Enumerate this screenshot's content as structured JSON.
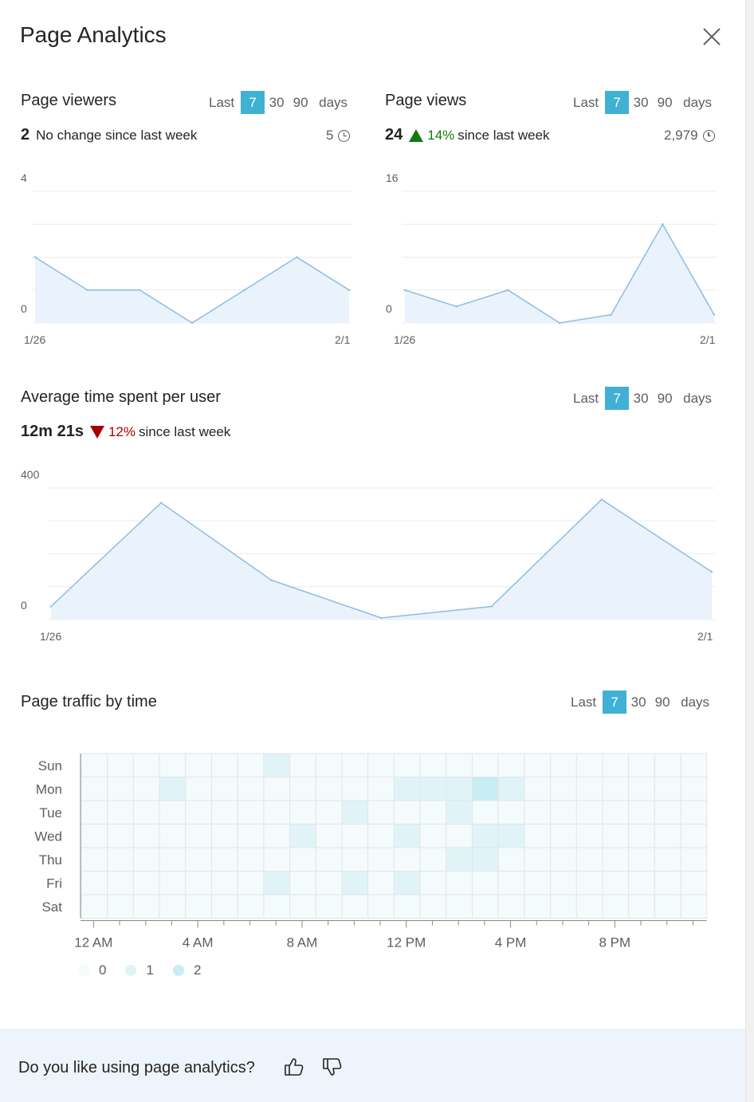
{
  "panel": {
    "title": "Page Analytics",
    "close_icon": "close-icon"
  },
  "range_options": {
    "prefix": "Last",
    "options": [
      "7",
      "30",
      "90"
    ],
    "suffix": "days",
    "selected": "7"
  },
  "page_viewers": {
    "title": "Page viewers",
    "count": "2",
    "change_text": "No change since last week",
    "total": "5",
    "total_icon": "clock-icon"
  },
  "page_views": {
    "title": "Page views",
    "count": "24",
    "change_pct": "14%",
    "change_text": "since last week",
    "trend": "up",
    "total": "2,979",
    "total_icon": "clock-icon"
  },
  "avg_time": {
    "title": "Average time spent per user",
    "value": "12m 21s",
    "change_pct": "12%",
    "change_text": "since last week",
    "trend": "down"
  },
  "traffic": {
    "title": "Page traffic by time"
  },
  "feedback": {
    "question": "Do you like using page analytics?",
    "like_icon": "thumbs-up-icon",
    "dislike_icon": "thumbs-down-icon"
  },
  "colors": {
    "accent": "#40b0d4",
    "line": "#8cbce8",
    "area": "#eaf2fb",
    "up": "#107c10",
    "down": "#a80000",
    "heat0": "#f3fbfd",
    "heat1": "#e0f4f8",
    "heat2": "#c8edf4"
  },
  "chart_data": [
    {
      "type": "area",
      "name": "page-viewers-chart",
      "x": [
        "1/26",
        "1/27",
        "1/28",
        "1/29",
        "1/30",
        "1/31",
        "2/1"
      ],
      "values": [
        2,
        1,
        1,
        0,
        1,
        2,
        1
      ],
      "ylim": [
        0,
        4
      ],
      "y_ticks": [
        "4",
        "0"
      ],
      "x_tick_labels": [
        "1/26",
        "2/1"
      ],
      "grid": true
    },
    {
      "type": "area",
      "name": "page-views-chart",
      "x": [
        "1/26",
        "1/27",
        "1/28",
        "1/29",
        "1/30",
        "1/31",
        "2/1"
      ],
      "values": [
        4,
        2,
        4,
        0,
        1,
        12,
        1
      ],
      "ylim": [
        0,
        16
      ],
      "y_ticks": [
        "16",
        "0"
      ],
      "x_tick_labels": [
        "1/26",
        "2/1"
      ],
      "grid": true
    },
    {
      "type": "area",
      "name": "avg-time-chart",
      "x": [
        "1/26",
        "1/27",
        "1/28",
        "1/29",
        "1/30",
        "1/31",
        "2/1"
      ],
      "values": [
        40,
        355,
        120,
        5,
        40,
        365,
        145
      ],
      "ylim": [
        0,
        400
      ],
      "y_ticks": [
        "400",
        "0"
      ],
      "x_tick_labels": [
        "1/26",
        "2/1"
      ],
      "grid": true
    },
    {
      "type": "heatmap",
      "name": "traffic-heatmap",
      "rows": [
        "Sun",
        "Mon",
        "Tue",
        "Wed",
        "Thu",
        "Fri",
        "Sat"
      ],
      "hour_labels": [
        "12 AM",
        "4 AM",
        "8 AM",
        "12 PM",
        "4 PM",
        "8 PM"
      ],
      "legend": [
        "0",
        "1",
        "2"
      ],
      "cells": [
        [
          0,
          0,
          0,
          0,
          0,
          0,
          0,
          1,
          0,
          0,
          0,
          0,
          0,
          0,
          0,
          0,
          0,
          0,
          0,
          0,
          0,
          0,
          0,
          0
        ],
        [
          0,
          0,
          0,
          1,
          0,
          0,
          0,
          0,
          0,
          0,
          0,
          0,
          1,
          1,
          1,
          2,
          1,
          0,
          0,
          0,
          0,
          0,
          0,
          0
        ],
        [
          0,
          0,
          0,
          0,
          0,
          0,
          0,
          0,
          0,
          0,
          1,
          0,
          0,
          0,
          1,
          0,
          0,
          0,
          0,
          0,
          0,
          0,
          0,
          0
        ],
        [
          0,
          0,
          0,
          0,
          0,
          0,
          0,
          0,
          1,
          0,
          0,
          0,
          1,
          0,
          0,
          1,
          1,
          0,
          0,
          0,
          0,
          0,
          0,
          0
        ],
        [
          0,
          0,
          0,
          0,
          0,
          0,
          0,
          0,
          0,
          0,
          0,
          0,
          0,
          0,
          1,
          1,
          0,
          0,
          0,
          0,
          0,
          0,
          0,
          0
        ],
        [
          0,
          0,
          0,
          0,
          0,
          0,
          0,
          1,
          0,
          0,
          1,
          0,
          1,
          0,
          0,
          0,
          0,
          0,
          0,
          0,
          0,
          0,
          0,
          0
        ],
        [
          0,
          0,
          0,
          0,
          0,
          0,
          0,
          0,
          0,
          0,
          0,
          0,
          0,
          0,
          0,
          0,
          0,
          0,
          0,
          0,
          0,
          0,
          0,
          0
        ]
      ]
    }
  ]
}
